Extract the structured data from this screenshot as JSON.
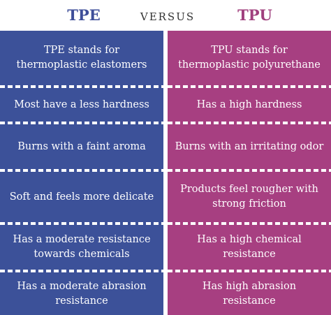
{
  "header": {
    "left_title": "TPE",
    "versus": "VERSUS",
    "right_title": "TPU"
  },
  "rows": [
    {
      "tpe": "TPE stands for thermoplastic elastomers",
      "tpu": "TPU stands for thermoplastic polyurethane"
    },
    {
      "tpe": "Most have a less hardness",
      "tpu": "Has a high hardness"
    },
    {
      "tpe": "Burns with a faint aroma",
      "tpu": "Burns with an irritating odor"
    },
    {
      "tpe": "Soft and feels more delicate",
      "tpu": "Products feel rougher with strong friction"
    },
    {
      "tpe": "Has a moderate resistance towards chemicals",
      "tpu": "Has a high chemical resistance"
    },
    {
      "tpe": "Has a moderate abrasion resistance",
      "tpu": "Has high abrasion resistance"
    }
  ],
  "colors": {
    "tpe_panel": "#3c5199",
    "tpu_panel": "#a73f81",
    "tpe_title": "#3e4e99",
    "tpu_title": "#a0407e"
  }
}
